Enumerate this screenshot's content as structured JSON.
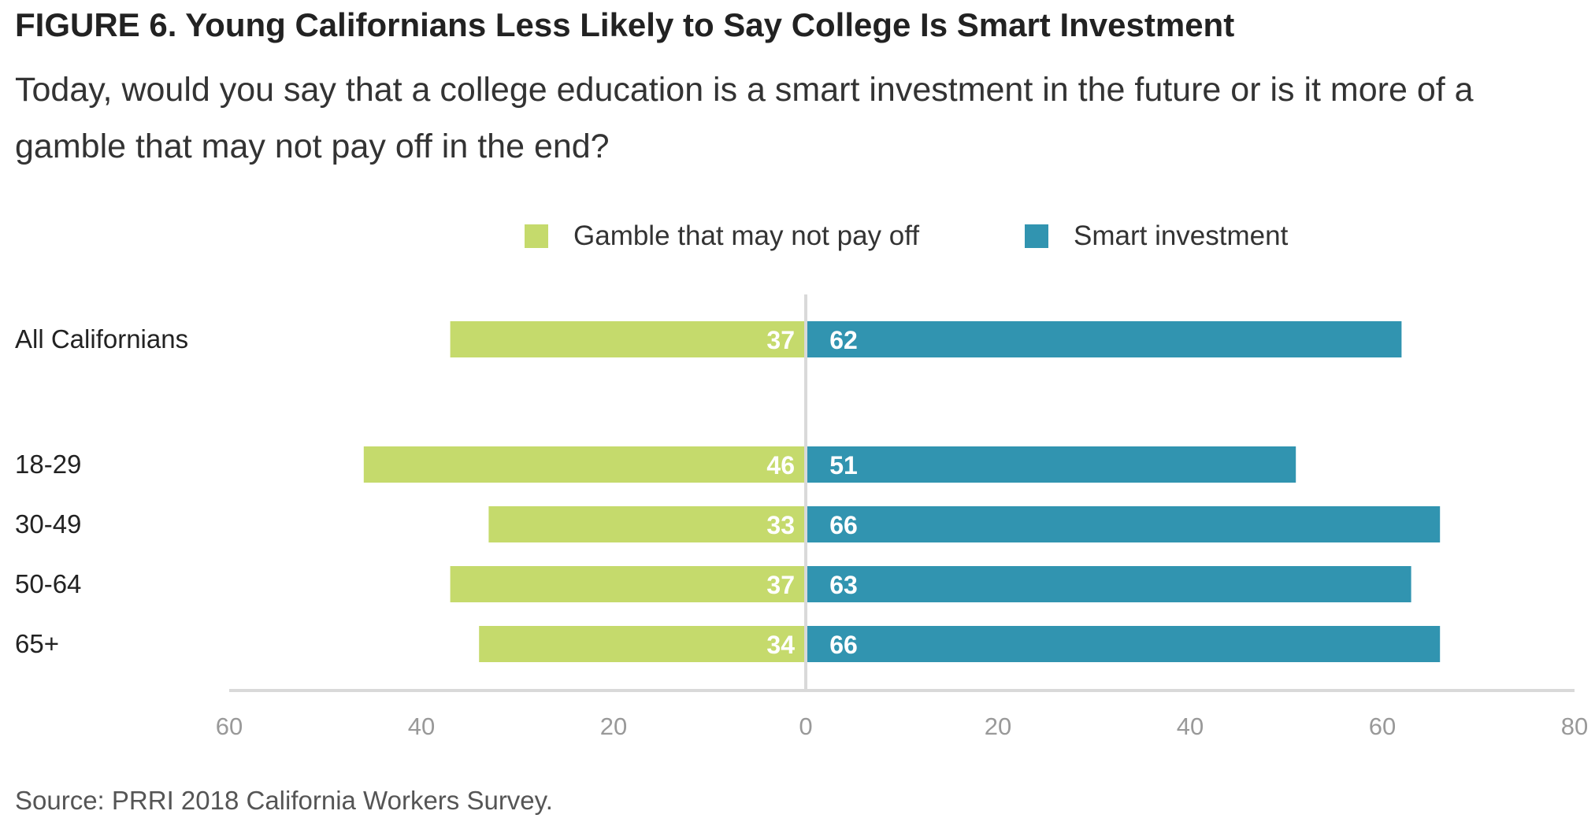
{
  "title": "FIGURE 6. Young Californians Less Likely to Say College Is Smart Investment",
  "subtitle": "Today, would you say that a college education is a smart investment in the future or is it more of a gamble that may not pay off in the end?",
  "source": "Source: PRRI 2018 California Workers Survey.",
  "colors": {
    "gamble": "#C5DA6C",
    "smart": "#3194B0",
    "axis": "#D9D9D9"
  },
  "chart_data": {
    "type": "bar",
    "orientation": "horizontal-diverging",
    "categories": [
      "All Californians",
      "18-29",
      "30-49",
      "50-64",
      "65+"
    ],
    "series": [
      {
        "name": "Gamble that may not pay off",
        "values": [
          37,
          46,
          33,
          37,
          34
        ],
        "direction": "left"
      },
      {
        "name": "Smart investment",
        "values": [
          62,
          51,
          66,
          63,
          66
        ],
        "direction": "right"
      }
    ],
    "xlim": [
      -60,
      80
    ],
    "xticks": [
      -60,
      -40,
      -20,
      0,
      20,
      40,
      60,
      80
    ],
    "xtick_labels": [
      "60",
      "40",
      "20",
      "0",
      "20",
      "40",
      "60",
      "80"
    ],
    "legend": "top-center",
    "grid": false
  }
}
